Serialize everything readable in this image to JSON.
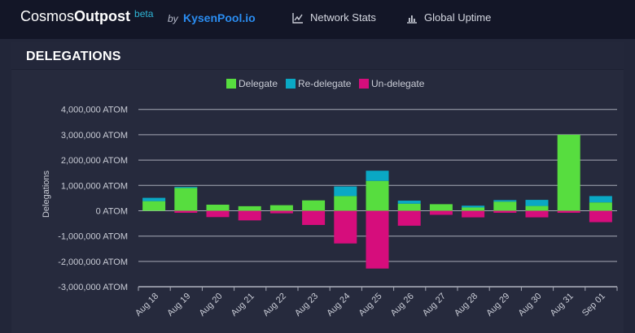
{
  "header": {
    "brand_part1": "Cosmos",
    "brand_part2": "Outpost",
    "beta": "beta",
    "by": "by",
    "pool": "KysenPool.io",
    "nav": [
      {
        "label": "Network Stats",
        "icon": "line-chart-icon"
      },
      {
        "label": "Global Uptime",
        "icon": "bar-chart-icon"
      }
    ]
  },
  "panel": {
    "title": "DELEGATIONS"
  },
  "colors": {
    "delegate": "#57dd3f",
    "redelegate": "#0aa8c4",
    "undelegate": "#d60d7c",
    "grid": "#a6a9b6",
    "axis": "#c9ccd6"
  },
  "chart_data": {
    "type": "bar",
    "stacked": true,
    "ylabel": "Delegations",
    "xlabel": "",
    "ylim": [
      -3000000,
      4000000
    ],
    "yticks": [
      4000000,
      3000000,
      2000000,
      1000000,
      0,
      -1000000,
      -2000000,
      -3000000
    ],
    "ytick_labels": [
      "4,000,000 ATOM",
      "3,000,000 ATOM",
      "2,000,000 ATOM",
      "1,000,000 ATOM",
      "0 ATOM",
      "-1,000,000 ATOM",
      "-2,000,000 ATOM",
      "-3,000,000 ATOM"
    ],
    "categories": [
      "Aug 18",
      "Aug 19",
      "Aug 20",
      "Aug 21",
      "Aug 22",
      "Aug 23",
      "Aug 24",
      "Aug 25",
      "Aug 26",
      "Aug 27",
      "Aug 28",
      "Aug 29",
      "Aug 30",
      "Aug 31",
      "Sep 01"
    ],
    "legend": [
      "Delegate",
      "Re-delegate",
      "Un-delegate"
    ],
    "series": [
      {
        "name": "Delegate",
        "values": [
          380000,
          900000,
          240000,
          180000,
          220000,
          410000,
          580000,
          1180000,
          280000,
          260000,
          130000,
          360000,
          190000,
          3000000,
          330000
        ]
      },
      {
        "name": "Re-delegate",
        "values": [
          130000,
          40000,
          0,
          0,
          0,
          0,
          380000,
          400000,
          120000,
          0,
          70000,
          60000,
          240000,
          0,
          250000
        ]
      },
      {
        "name": "Un-delegate",
        "values": [
          0,
          -80000,
          -250000,
          -380000,
          -100000,
          -560000,
          -1290000,
          -2280000,
          -590000,
          -160000,
          -260000,
          -80000,
          -260000,
          -80000,
          -450000
        ]
      }
    ]
  }
}
